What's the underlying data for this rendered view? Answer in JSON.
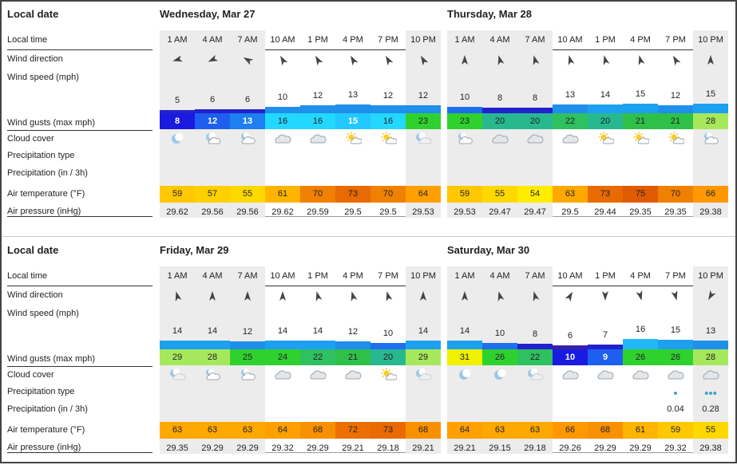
{
  "labels": {
    "local_date": "Local date",
    "local_time": "Local time",
    "wind_direction": "Wind direction",
    "wind_speed": "Wind speed  (mph)",
    "wind_gusts": "Wind gusts  (max mph)",
    "cloud_cover": "Cloud cover",
    "precip_type": "Precipitation type",
    "precipitation": "Precipitation  (in / 3h)",
    "air_temp": "Air temperature  (°F)",
    "air_pressure": "Air pressure  (inHg)"
  },
  "times": [
    "1 AM",
    "4 AM",
    "7 AM",
    "10 AM",
    "1 PM",
    "4 PM",
    "7 PM",
    "10 PM"
  ],
  "colors": {
    "night_bg": "#ececec",
    "gust_text_dark": "#ffffff",
    "gust_text_light": "#222222"
  },
  "days": [
    {
      "title": "Wednesday, Mar 27",
      "dir_deg": [
        255,
        245,
        300,
        330,
        330,
        330,
        330,
        330
      ],
      "speed": [
        "5",
        "6",
        "6",
        "10",
        "12",
        "13",
        "12",
        "12"
      ],
      "speed_num": [
        5,
        6,
        6,
        10,
        12,
        13,
        12,
        12
      ],
      "speed_colors": [
        "#2222cc",
        "#2222cc",
        "#2222cc",
        "#1e8fea",
        "#1e8fea",
        "#1e8fea",
        "#1e8fea",
        "#1e8fea"
      ],
      "gusts": [
        "8",
        "12",
        "13",
        "16",
        "16",
        "15",
        "16",
        "23"
      ],
      "gust_colors": [
        "#1a1ae0",
        "#1e5ff0",
        "#1e7ff0",
        "#22d8ff",
        "#22d8ff",
        "#22c8ff",
        "#22d8ff",
        "#2fd12f"
      ],
      "gust_dark": [
        true,
        true,
        true,
        false,
        false,
        true,
        false,
        false
      ],
      "clouds": [
        "moon",
        "moon-cloud",
        "sun-cloud-night",
        "cloud",
        "cloud",
        "sun-cloud",
        "sun-cloud",
        "moon-cloud-light"
      ],
      "precip_type": [
        "",
        "",
        "",
        "",
        "",
        "",
        "",
        ""
      ],
      "precip": [
        "",
        "",
        "",
        "",
        "",
        "",
        "",
        ""
      ],
      "temps": [
        "59",
        "57",
        "55",
        "61",
        "70",
        "73",
        "70",
        "64"
      ],
      "temp_colors": [
        "#ffc800",
        "#ffd000",
        "#ffd800",
        "#ffb400",
        "#f08000",
        "#e86a00",
        "#f08000",
        "#ffa000"
      ],
      "pressure": [
        "29.62",
        "29.56",
        "29.56",
        "29.62",
        "29.59",
        "29.5",
        "29.5",
        "29.53"
      ]
    },
    {
      "title": "Thursday, Mar 28",
      "dir_deg": [
        0,
        345,
        345,
        345,
        345,
        345,
        330,
        0
      ],
      "speed": [
        "10",
        "8",
        "8",
        "13",
        "14",
        "15",
        "12",
        "15"
      ],
      "speed_num": [
        10,
        8,
        8,
        13,
        14,
        15,
        12,
        15
      ],
      "speed_colors": [
        "#1e6ef0",
        "#2222cc",
        "#2222cc",
        "#1e8fea",
        "#1ea0f0",
        "#1ea0f0",
        "#1e8fea",
        "#1ea0f0"
      ],
      "gusts": [
        "23",
        "20",
        "20",
        "22",
        "20",
        "21",
        "21",
        "28"
      ],
      "gust_colors": [
        "#2fd12f",
        "#28b890",
        "#28b890",
        "#2fc060",
        "#28b890",
        "#2fc04a",
        "#2fc04a",
        "#a6e85c"
      ],
      "gust_dark": [
        false,
        false,
        false,
        false,
        false,
        false,
        false,
        false
      ],
      "clouds": [
        "sun-cloud-night",
        "cloud",
        "cloud",
        "cloud",
        "sun-cloud",
        "sun-cloud",
        "sun-cloud",
        "sun-cloud-night"
      ],
      "precip_type": [
        "",
        "",
        "",
        "",
        "",
        "",
        "",
        ""
      ],
      "precip": [
        "",
        "",
        "",
        "",
        "",
        "",
        "",
        ""
      ],
      "temps": [
        "59",
        "55",
        "54",
        "63",
        "73",
        "75",
        "70",
        "66"
      ],
      "temp_colors": [
        "#ffc800",
        "#ffd800",
        "#ffec00",
        "#ffa800",
        "#e86a00",
        "#e05a00",
        "#f08000",
        "#ff9800"
      ],
      "pressure": [
        "29.53",
        "29.47",
        "29.47",
        "29.5",
        "29.44",
        "29.35",
        "29.35",
        "29.38"
      ]
    },
    {
      "title": "Friday, Mar 29",
      "dir_deg": [
        345,
        0,
        0,
        0,
        345,
        345,
        345,
        0
      ],
      "speed": [
        "14",
        "14",
        "12",
        "14",
        "14",
        "12",
        "10",
        "14"
      ],
      "speed_num": [
        14,
        14,
        12,
        14,
        14,
        12,
        10,
        14
      ],
      "speed_colors": [
        "#1ea0f0",
        "#1ea0f0",
        "#1e8fea",
        "#1ea0f0",
        "#1ea0f0",
        "#1e8fea",
        "#1e6ef0",
        "#1ea0f0"
      ],
      "gusts": [
        "29",
        "28",
        "25",
        "24",
        "22",
        "21",
        "20",
        "29"
      ],
      "gust_colors": [
        "#a6e85c",
        "#a6e85c",
        "#2fd12f",
        "#2fd12f",
        "#2fc060",
        "#2fc04a",
        "#28b890",
        "#a6e85c"
      ],
      "gust_dark": [
        false,
        false,
        false,
        false,
        false,
        false,
        false,
        false
      ],
      "clouds": [
        "moon-cloud-light",
        "sun-cloud-night",
        "sun-cloud-night",
        "cloud",
        "cloud",
        "cloud",
        "sun-cloud",
        "moon-cloud-light"
      ],
      "precip_type": [
        "",
        "",
        "",
        "",
        "",
        "",
        "",
        ""
      ],
      "precip": [
        "",
        "",
        "",
        "",
        "",
        "",
        "",
        ""
      ],
      "temps": [
        "63",
        "63",
        "63",
        "64",
        "68",
        "72",
        "73",
        "68"
      ],
      "temp_colors": [
        "#ffa800",
        "#ffa800",
        "#ffa800",
        "#ffa000",
        "#f89000",
        "#ec7000",
        "#e86a00",
        "#f89000"
      ],
      "pressure": [
        "29.35",
        "29.29",
        "29.29",
        "29.32",
        "29.29",
        "29.21",
        "29.18",
        "29.21"
      ]
    },
    {
      "title": "Saturday, Mar 30",
      "dir_deg": [
        0,
        345,
        345,
        30,
        180,
        165,
        165,
        210
      ],
      "speed": [
        "14",
        "10",
        "8",
        "6",
        "7",
        "16",
        "15",
        "13"
      ],
      "speed_num": [
        14,
        10,
        8,
        6,
        7,
        16,
        15,
        13
      ],
      "speed_colors": [
        "#1ea0f0",
        "#1e6ef0",
        "#2222cc",
        "#3322aa",
        "#2222cc",
        "#22b8f8",
        "#1ea0f0",
        "#1e8fea"
      ],
      "gusts": [
        "31",
        "26",
        "22",
        "10",
        "9",
        "26",
        "26",
        "28"
      ],
      "gust_colors": [
        "#f0f000",
        "#2fd12f",
        "#2fc060",
        "#1a1ae0",
        "#1e5ff0",
        "#2fd12f",
        "#2fd12f",
        "#a6e85c"
      ],
      "gust_dark": [
        false,
        false,
        false,
        true,
        true,
        false,
        false,
        false
      ],
      "clouds": [
        "moon",
        "moon",
        "moon-cloud-light",
        "cloud",
        "cloud",
        "cloud",
        "cloud",
        "cloud"
      ],
      "precip_type": [
        "",
        "",
        "",
        "",
        "",
        "",
        "drop",
        "drop3"
      ],
      "precip": [
        "",
        "",
        "",
        "",
        "",
        "",
        "0.04",
        "0.28"
      ],
      "temps": [
        "64",
        "63",
        "63",
        "66",
        "68",
        "61",
        "59",
        "55"
      ],
      "temp_colors": [
        "#ffa000",
        "#ffa800",
        "#ffa800",
        "#ff9800",
        "#f89000",
        "#ffb400",
        "#ffc800",
        "#ffd800"
      ],
      "pressure": [
        "29.21",
        "29.15",
        "29.18",
        "29.26",
        "29.29",
        "29.29",
        "29.32",
        "29.38"
      ]
    }
  ]
}
